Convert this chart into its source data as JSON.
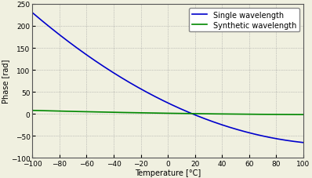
{
  "xlabel": "Temperature [°C]",
  "ylabel": "Phase [rad]",
  "xlim": [
    -100,
    100
  ],
  "ylim": [
    -100,
    250
  ],
  "yticks": [
    -100,
    -50,
    0,
    50,
    100,
    150,
    200,
    250
  ],
  "xticks": [
    -100,
    -80,
    -60,
    -40,
    -20,
    0,
    20,
    40,
    60,
    80,
    100
  ],
  "legend": [
    "Single wavelength",
    "Synthetic wavelength"
  ],
  "line_colors": [
    "#0000cc",
    "#008800"
  ],
  "background_color": "#f0f0e0",
  "grid_color": "#999999",
  "phase_single_at_minus100": 230,
  "phase_single_at_100": -65,
  "phase_syn_at_minus100": 8,
  "phase_syn_at_100": -1.5
}
